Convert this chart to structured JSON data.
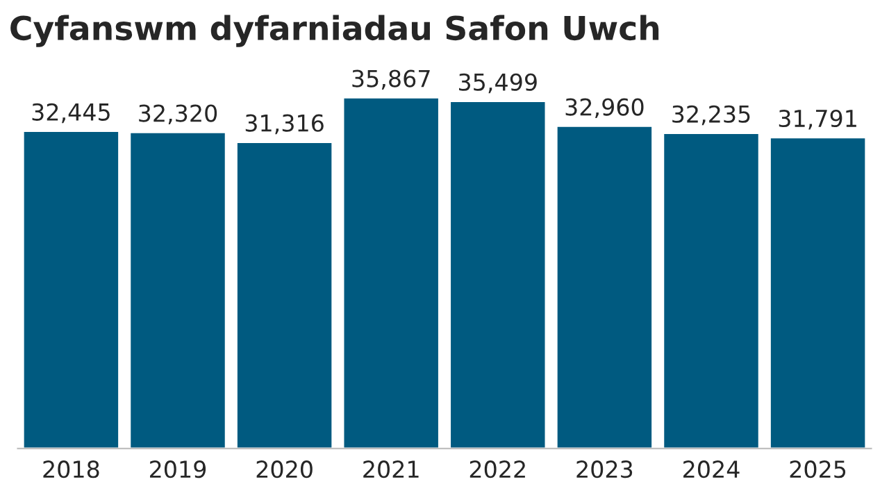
{
  "chart_data": {
    "type": "bar",
    "title": "Cyfanswm dyfarniadau Safon Uwch",
    "categories": [
      "2018",
      "2019",
      "2020",
      "2021",
      "2022",
      "2023",
      "2024",
      "2025"
    ],
    "values": [
      32445,
      32320,
      31316,
      35867,
      35499,
      32960,
      32235,
      31791
    ],
    "value_labels": [
      "32,445",
      "32,320",
      "31,316",
      "35,867",
      "35,499",
      "32,960",
      "32,235",
      "31,791"
    ],
    "color": "#005a80",
    "tick_labels": "x",
    "grid": false,
    "legend": false
  }
}
